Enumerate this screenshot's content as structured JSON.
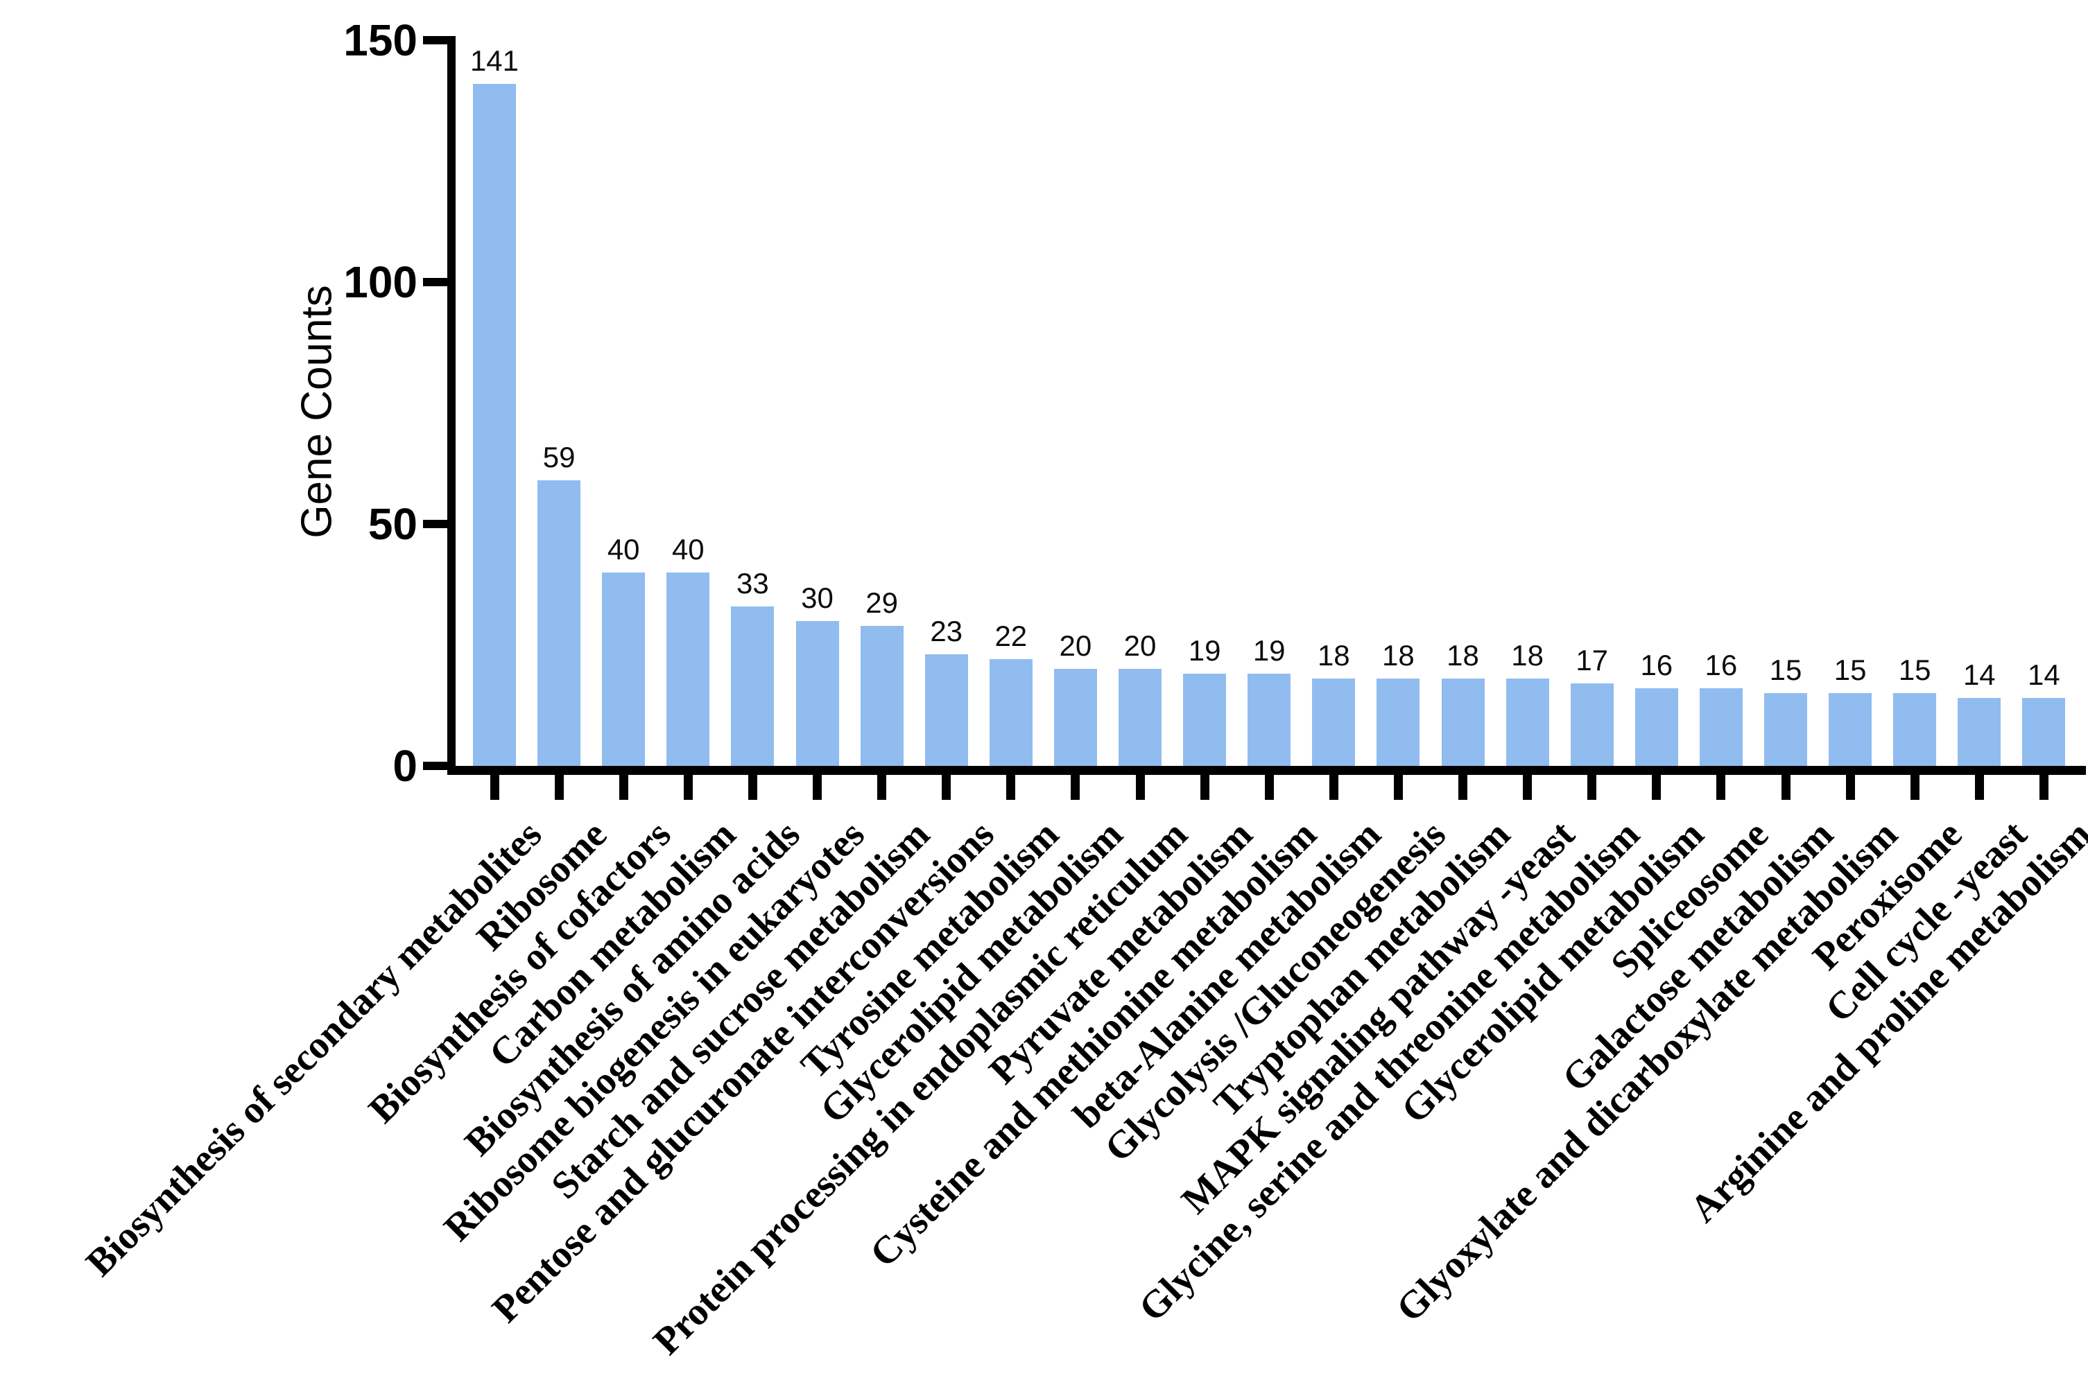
{
  "chart_data": {
    "type": "bar",
    "title": "",
    "xlabel": "",
    "ylabel": "Gene Counts",
    "ylim": [
      0,
      150
    ],
    "yticks": [
      0,
      50,
      100,
      150
    ],
    "grid": false,
    "legend_position": "none",
    "bar_labels_shown": true,
    "bar_color": "#90BCF0",
    "axis_color": "#000000",
    "text_color": "#000000",
    "background_color": "#ffffff",
    "categories": [
      "Biosynthesis of secondary metabolites",
      "Ribosome",
      "Biosynthesis of cofactors",
      "Carbon metabolism",
      "Biosynthesis of amino acids",
      "Ribosome biogenesis in eukaryotes",
      "Starch and sucrose metabolism",
      "Pentose and glucuronate interconversions",
      "Tyrosine metabolism",
      "Glycerolipid metabolism",
      "Protein processing in endoplasmic reticulum",
      "Pyruvate metabolism",
      "Cysteine and methionine metabolism",
      "beta-Alanine metabolism",
      "Glycolysis /Gluconeogenesis",
      "Tryptophan metabolism",
      "MAPK signaling pathway -yeast",
      "Glycine, serine and threonine metabolism",
      "Glycerolipid metabolism",
      "Spliceosome",
      "Galactose metabolism",
      "Glyoxylate and dicarboxylate metabolism",
      "Peroxisome",
      "Cell cycle -yeast",
      "Arginine and proline metabolism"
    ],
    "values": [
      141,
      59,
      40,
      40,
      33,
      30,
      29,
      23,
      22,
      20,
      20,
      19,
      19,
      18,
      18,
      18,
      18,
      17,
      16,
      16,
      15,
      15,
      15,
      14,
      14
    ]
  }
}
